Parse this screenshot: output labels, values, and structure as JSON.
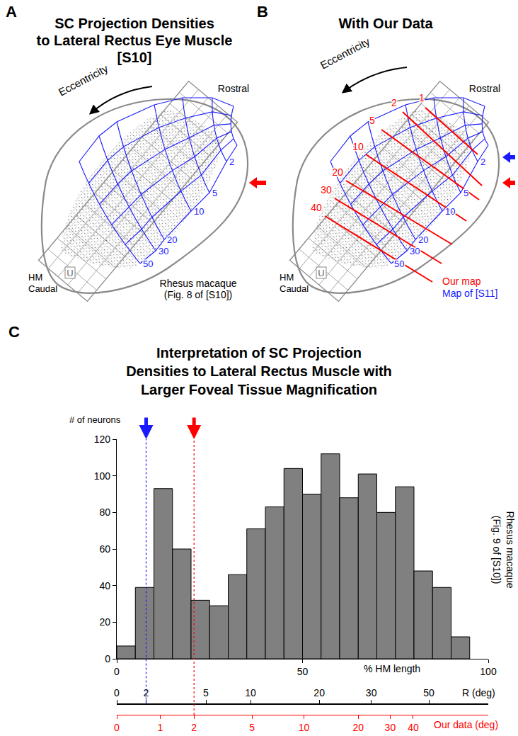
{
  "figure": {
    "panels": [
      {
        "letter": "A",
        "title": [
          "SC Projection Densities",
          "to Lateral Rectus Eye Muscle",
          "[S10]"
        ],
        "eccentricity_label": "Eccentricity",
        "rostral": "Rostral",
        "hm": "HM",
        "caudal": "Caudal",
        "u": "U",
        "map_labels": {
          "color": "#1a1aff",
          "values": [
            2,
            5,
            10,
            20,
            30,
            50
          ]
        },
        "note": [
          "Rhesus macaque",
          "(Fig. 8 of [S10])"
        ],
        "arrows": [
          {
            "color": "#ff0000"
          }
        ]
      },
      {
        "letter": "B",
        "title": [
          "With Our Data"
        ],
        "eccentricity_label": "Eccentricity",
        "rostral": "Rostral",
        "hm": "HM",
        "caudal": "Caudal",
        "u": "U",
        "map_labels": {
          "color": "#1a1aff",
          "values": [
            2,
            5,
            10,
            20,
            30,
            50
          ]
        },
        "our_map_labels": {
          "color": "#ff0000",
          "values": [
            1,
            2,
            5,
            10,
            20,
            30,
            40
          ]
        },
        "legend_entries": [
          {
            "name": "Our map",
            "color": "#ff0000"
          },
          {
            "name": "Map of [S11]",
            "color": "#1a1aff"
          }
        ],
        "arrows": [
          {
            "color": "#1a1aff"
          },
          {
            "color": "#ff0000"
          }
        ]
      }
    ]
  },
  "chart_data": {
    "type": "histogram",
    "letter": "C",
    "title": [
      "Interpretation of SC Projection",
      "Densities to Lateral Rectus Muscle with",
      "Larger Foveal Tissue Magnification"
    ],
    "ylabel": "# of neurons",
    "xlabel": "% HM length",
    "bins": [
      0,
      5,
      10,
      15,
      20,
      25,
      30,
      35,
      40,
      45,
      50,
      55,
      60,
      65,
      70,
      75,
      80,
      85,
      90,
      95
    ],
    "values": [
      7,
      39,
      93,
      60,
      32,
      29,
      46,
      71,
      83,
      104,
      90,
      112,
      88,
      101,
      80,
      94,
      48,
      39,
      12
    ],
    "color": "#808080",
    "xlim": [
      0,
      100
    ],
    "xticks": [
      0,
      50,
      100
    ],
    "ylim": [
      0,
      120
    ],
    "yticks": [
      0,
      20,
      40,
      60,
      80,
      100,
      120
    ],
    "grid": false,
    "secondary_axes": [
      {
        "label": "R (deg)",
        "color": "#000000",
        "ticks": [
          0,
          {
            "value": 7.9,
            "label": "2"
          },
          {
            "value": 24,
            "label": "5"
          },
          {
            "value": 36,
            "label": "10"
          },
          {
            "value": 54.5,
            "label": "20"
          },
          {
            "value": 68.5,
            "label": "30"
          },
          {
            "value": 84,
            "label": "50"
          }
        ]
      },
      {
        "label": "Our data (deg)",
        "color": "#ff0000",
        "ticks": [
          0,
          {
            "value": 11.7,
            "label": "1"
          },
          {
            "value": 20.8,
            "label": "2"
          },
          {
            "value": 36.4,
            "label": "5"
          },
          {
            "value": 50.4,
            "label": "10"
          },
          {
            "value": 65,
            "label": "20"
          },
          {
            "value": 73.6,
            "label": "30"
          },
          {
            "value": 79.8,
            "label": "40"
          }
        ]
      }
    ],
    "reference_lines": [
      {
        "x": 7.9,
        "color": "#1a1aff",
        "line_style": "dashed"
      },
      {
        "x": 20.8,
        "color": "#ff0000",
        "line_style": "dashed"
      }
    ],
    "side_note": [
      "Rhesus macaque",
      "(Fig. 9 of [S10])"
    ]
  }
}
